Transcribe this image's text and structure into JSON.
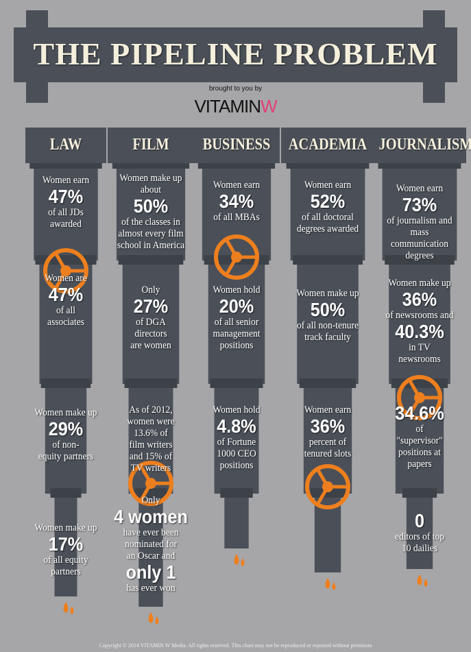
{
  "header": {
    "title": "THE PIPELINE PROBLEM",
    "byline": "brought to you by",
    "brand": {
      "main": "VITAMIN",
      "accent": "W"
    }
  },
  "columns": [
    {
      "name": "LAW",
      "blocks": [
        [
          "Women earn",
          "47%",
          "of all JDs",
          "awarded"
        ],
        [
          "Women are",
          "47%",
          "of all",
          "associates"
        ],
        [
          "Women make up",
          "29%",
          "of non-",
          "equity partners"
        ],
        [
          "Women make up",
          "17%",
          "of all equity",
          "partners"
        ]
      ]
    },
    {
      "name": "FILM",
      "blocks": [
        [
          "Women make up",
          "about",
          "50%",
          "of the classes in",
          "almost every film",
          "school in America"
        ],
        [
          "Only",
          "27%",
          "of DGA",
          "directors",
          "are women"
        ],
        [
          "As of 2012,",
          "women were",
          "13.6% of",
          "film writers",
          "and 15% of",
          "TV writers"
        ],
        [
          "Only",
          "4 women",
          "have ever been",
          "nominated for",
          "an Oscar and",
          "only 1",
          "has ever won"
        ]
      ]
    },
    {
      "name": "BUSINESS",
      "blocks": [
        [
          "Women earn",
          "34%",
          "of all MBAs"
        ],
        [
          "Women hold",
          "20%",
          "of all senior",
          "management",
          "positions"
        ],
        [
          "Women hold",
          "4.8%",
          "of Fortune",
          "1000 CEO",
          "positions"
        ]
      ]
    },
    {
      "name": "ACADEMIA",
      "blocks": [
        [
          "Women earn",
          "52%",
          "of all doctoral",
          "degrees awarded"
        ],
        [
          "Women make up",
          "50%",
          "of all non-tenure",
          "track faculty"
        ],
        [
          "Women earn",
          "36%",
          "percent of",
          "tenured slots"
        ]
      ]
    },
    {
      "name": "JOURNALISM",
      "blocks": [
        [
          "Women earn",
          "73%",
          "of journalism and",
          "mass",
          "communication",
          "degrees"
        ],
        [
          "Women make up",
          "36%",
          "of newsrooms and",
          "40.3%",
          "in TV",
          "newsrooms"
        ],
        [
          "34.6%",
          "of",
          "\"supervisor\"",
          "positions at",
          "papers"
        ],
        [
          "0",
          "editors of top",
          "10 dailies"
        ]
      ]
    }
  ],
  "footer": "Copyright © 2014 VITAMIN W Media. All rights reserved. This chart may not be reproduced or reposted without permissio"
}
